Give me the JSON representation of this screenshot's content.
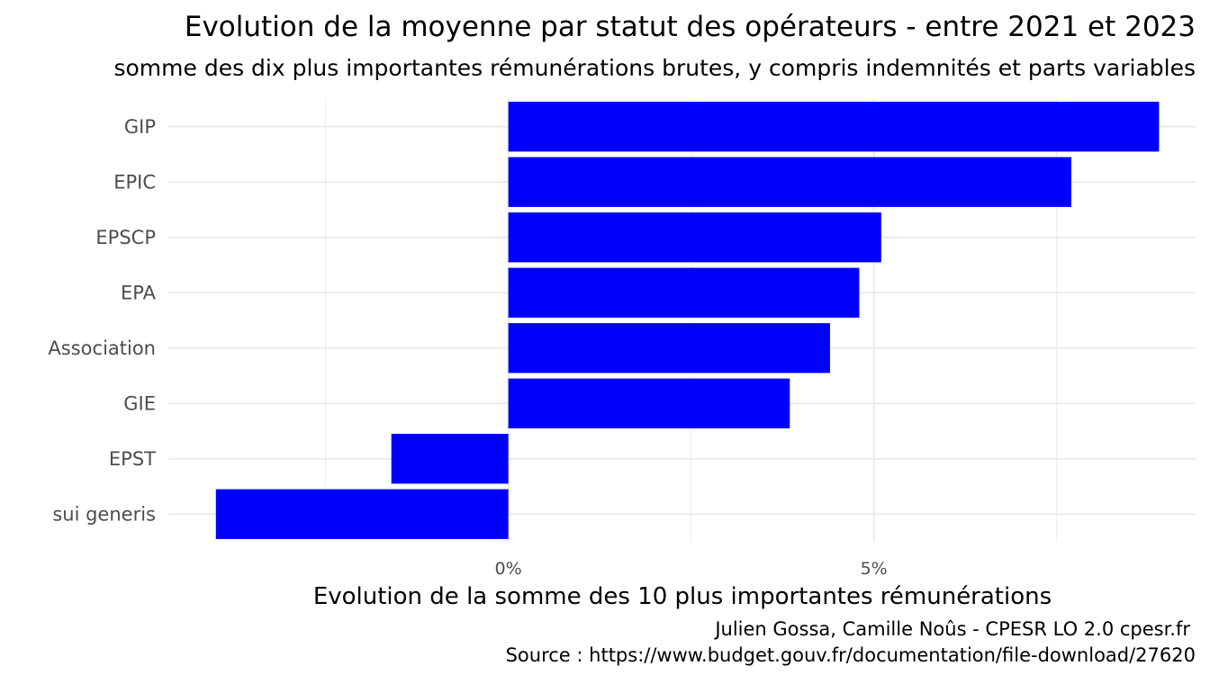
{
  "chart_data": {
    "type": "bar",
    "orientation": "horizontal",
    "title": "Evolution de la moyenne par statut des opérateurs - entre 2021 et 2023",
    "subtitle": "somme des dix plus importantes rémunérations brutes, y compris indemnités et parts variables",
    "xlabel": "Evolution de la somme des 10 plus importantes rémunérations",
    "ylabel": "",
    "categories": [
      "GIP",
      "EPIC",
      "EPSCP",
      "EPA",
      "Association",
      "GIE",
      "EPST",
      "sui generis"
    ],
    "values": [
      8.9,
      7.7,
      5.1,
      4.8,
      4.4,
      3.85,
      -1.6,
      -4.0
    ],
    "unit": "%",
    "xlim": [
      -4.65,
      9.4
    ],
    "x_ticks": [
      {
        "value": 0,
        "label": "0%"
      },
      {
        "value": 5,
        "label": "5%"
      }
    ],
    "x_minor_ticks": [
      -2.5,
      2.5,
      7.5
    ],
    "grid": true,
    "bar_color": "#0000FF",
    "grid_color": "#EBEBEB"
  },
  "caption": {
    "line1": "Julien Gossa, Camille Noûs - CPESR LO 2.0 cpesr.fr",
    "line2": "Source : https://www.budget.gouv.fr/documentation/file-download/27620"
  }
}
